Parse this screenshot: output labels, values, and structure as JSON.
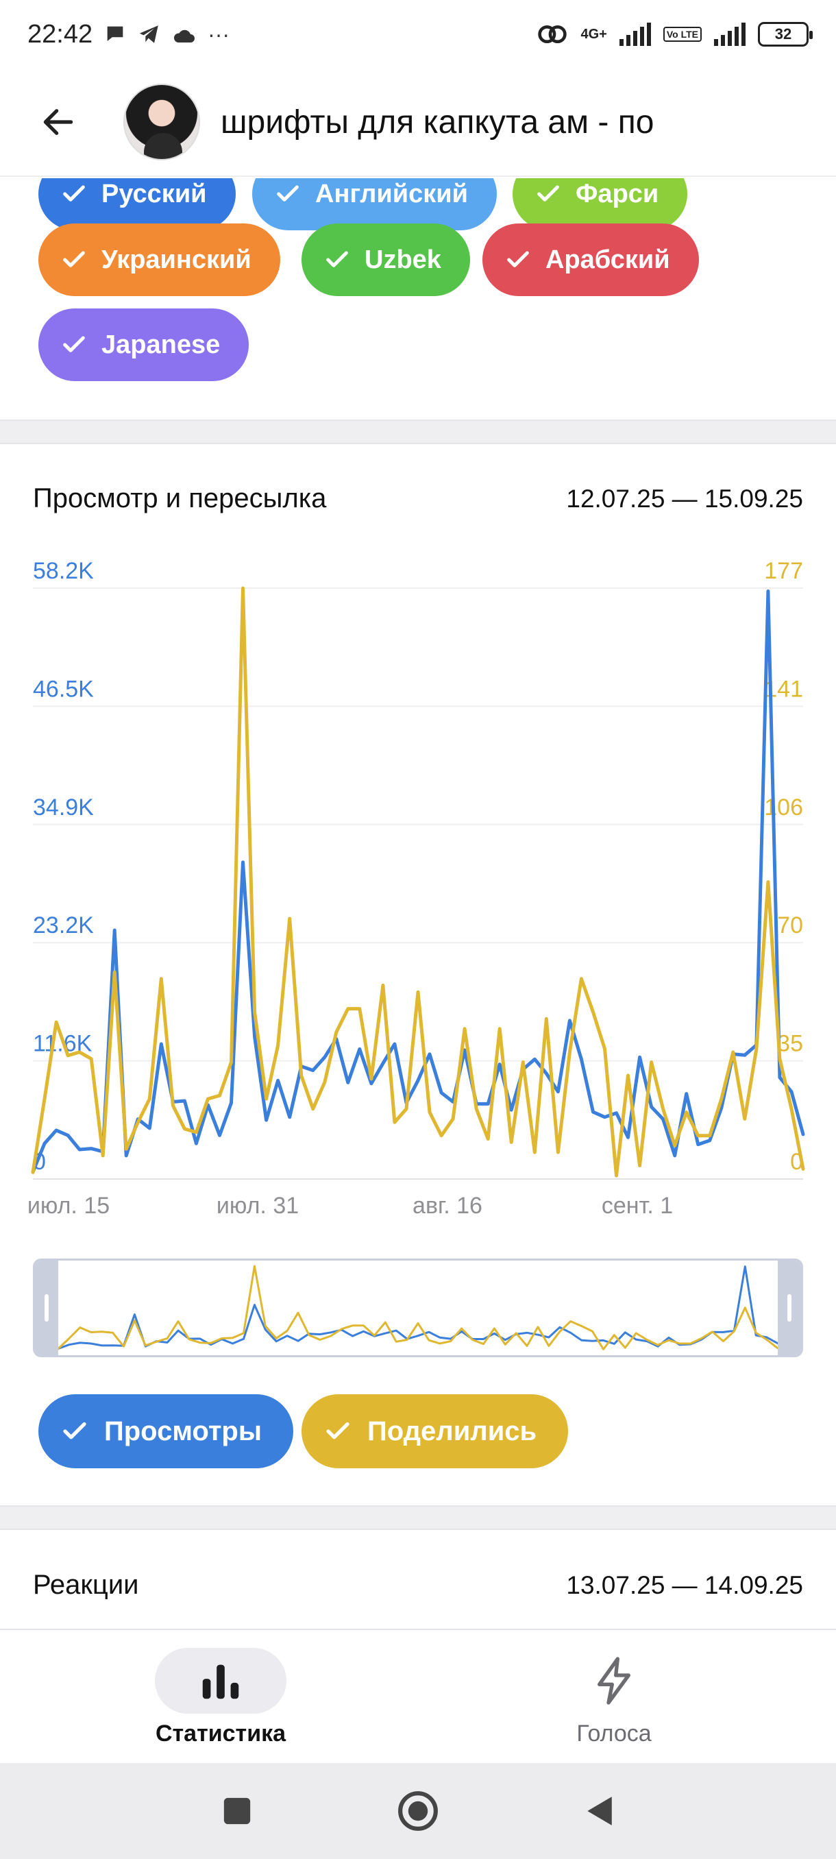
{
  "status_bar": {
    "time": "22:42",
    "more": "···",
    "network": "4G+",
    "volte": "Vo LTE",
    "battery": "32"
  },
  "header": {
    "title": "шрифты для капкута ам - по"
  },
  "languages": [
    {
      "label": "Русский",
      "color": "#3478e0"
    },
    {
      "label": "Английский",
      "color": "#5aa7f0"
    },
    {
      "label": "Фарси",
      "color": "#8ccf3a"
    },
    {
      "label": "Украинский",
      "color": "#f28a34"
    },
    {
      "label": "Uzbek",
      "color": "#55c24a"
    },
    {
      "label": "Арабский",
      "color": "#e04f58"
    },
    {
      "label": "Japanese",
      "color": "#8b73f0"
    }
  ],
  "views_card": {
    "title": "Просмотр и пересылка",
    "dates": "12.07.25 — 15.09.25"
  },
  "chart_data": {
    "type": "line",
    "x_tick_labels": [
      "июл. 15",
      "июл. 31",
      "авг. 16",
      "сент. 1"
    ],
    "y_left_ticks": [
      "0",
      "11.6K",
      "23.2K",
      "34.9K",
      "46.5K",
      "58.2K"
    ],
    "y_right_ticks": [
      "0",
      "35",
      "70",
      "106",
      "141",
      "177"
    ],
    "y_left_range": [
      0,
      58200
    ],
    "y_right_range": [
      0,
      177
    ],
    "grid": true,
    "series": [
      {
        "name": "Просмотры",
        "axis": "left",
        "color": "#3b7fdc",
        "values": [
          700,
          3500,
          4800,
          4300,
          2900,
          3000,
          2700,
          24500,
          2300,
          5900,
          5000,
          13300,
          7600,
          7700,
          3500,
          7300,
          4300,
          7500,
          31200,
          14000,
          5800,
          9700,
          6100,
          11100,
          10700,
          12000,
          13800,
          9500,
          12800,
          9400,
          11400,
          13300,
          7500,
          9700,
          12300,
          8500,
          7600,
          12700,
          7400,
          7400,
          11300,
          6800,
          10800,
          11800,
          10400,
          8600,
          15600,
          11800,
          6600,
          6100,
          6500,
          4100,
          12000,
          7100,
          5900,
          2300,
          8400,
          3400,
          3800,
          7000,
          12300,
          12200,
          13200,
          57900,
          10000,
          8600,
          4400
        ],
        "note_values": "Просмотры"
      },
      {
        "name": "Поделились",
        "axis": "right",
        "color": "#e0b730",
        "values": [
          2,
          24,
          47,
          37,
          38,
          36,
          7,
          62,
          9,
          17,
          24,
          60,
          22,
          15,
          14,
          24,
          25,
          35,
          177,
          50,
          24,
          40,
          78,
          31,
          21,
          29,
          44,
          51,
          51,
          30,
          58,
          17,
          21,
          56,
          20,
          13,
          18,
          45,
          21,
          12,
          45,
          11,
          35,
          8,
          48,
          8,
          38,
          60,
          50,
          39,
          1,
          31,
          4,
          35,
          21,
          10,
          20,
          13,
          13,
          24,
          38,
          18,
          39,
          89,
          36,
          21,
          3
        ]
      }
    ]
  },
  "legend": [
    {
      "label": "Просмотры",
      "color": "#3b7fdc"
    },
    {
      "label": "Поделились",
      "color": "#e0b730"
    }
  ],
  "reactions_card": {
    "title": "Реакции",
    "dates": "13.07.25 — 14.09.25"
  },
  "tabs": [
    {
      "label": "Статистика",
      "active": true,
      "icon": "bar-chart-icon"
    },
    {
      "label": "Голоса",
      "active": false,
      "icon": "lightning-icon"
    }
  ]
}
